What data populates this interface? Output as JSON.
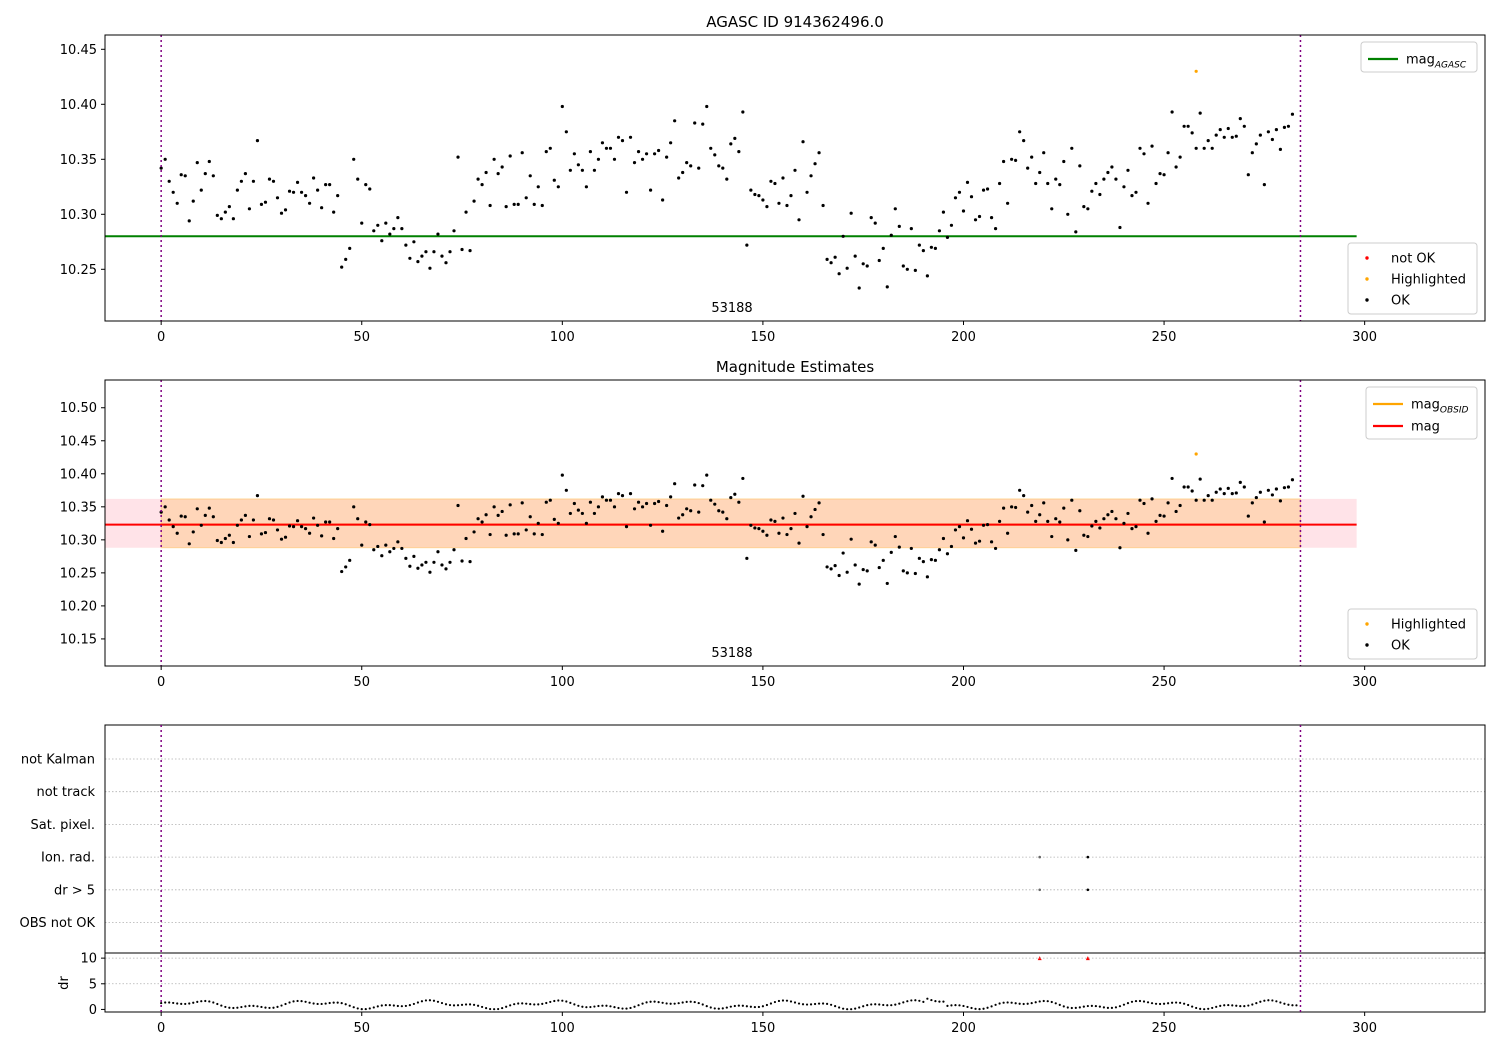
{
  "chart_data": [
    {
      "type": "scatter",
      "title": "AGASC ID 914362496.0",
      "annotation": "53188",
      "xlim": [
        -14,
        330
      ],
      "ylim": [
        10.203,
        10.463
      ],
      "xticks": [
        0,
        50,
        100,
        150,
        200,
        250,
        300
      ],
      "yticks": [
        10.25,
        10.3,
        10.35,
        10.4,
        10.45
      ],
      "vlines": [
        0,
        284
      ],
      "mag_agasc": 10.28,
      "mag_agasc_xrange": [
        -14,
        298
      ],
      "series": [
        {
          "name": "not OK",
          "color": "#ff0000",
          "points": []
        },
        {
          "name": "Highlighted",
          "color": "#ffa500",
          "points": [
            [
              258,
              10.43
            ]
          ]
        },
        {
          "name": "OK",
          "color": "#000000",
          "points": "ok_points"
        }
      ],
      "legend_lines": [
        {
          "name": "mag",
          "sub": "AGASC",
          "color": "#008000"
        }
      ],
      "legend_markers": [
        "not OK",
        "Highlighted",
        "OK"
      ],
      "grid": false
    },
    {
      "type": "scatter",
      "title": "Magnitude Estimates",
      "annotation": "53188",
      "xlim": [
        -14,
        330
      ],
      "ylim": [
        10.109,
        10.542
      ],
      "xticks": [
        0,
        50,
        100,
        150,
        200,
        250,
        300
      ],
      "yticks": [
        10.15,
        10.2,
        10.25,
        10.3,
        10.35,
        10.4,
        10.45,
        10.5
      ],
      "vlines": [
        0,
        284
      ],
      "mag": 10.323,
      "mag_band": [
        10.288,
        10.362
      ],
      "mag_obsid_band": [
        10.288,
        10.362
      ],
      "band_xrange": [
        -14,
        298
      ],
      "series": [
        {
          "name": "Highlighted",
          "color": "#ffa500",
          "points": [
            [
              258,
              10.43
            ]
          ]
        },
        {
          "name": "OK",
          "color": "#000000",
          "points": "ok_points"
        }
      ],
      "legend_lines": [
        {
          "name": "mag",
          "sub": "OBSID",
          "color": "#ffa500"
        },
        {
          "name": "mag",
          "sub": "",
          "color": "#ff0000"
        }
      ],
      "legend_markers": [
        "Highlighted",
        "OK"
      ],
      "grid": false
    },
    {
      "type": "scatter",
      "title": "",
      "xlim": [
        -14,
        330
      ],
      "xticks": [
        0,
        50,
        100,
        150,
        200,
        250,
        300
      ],
      "vlines": [
        0,
        284
      ],
      "flag_rows": [
        "not Kalman",
        "not track",
        "Sat. pixel.",
        "Ion. rad.",
        "dr > 5",
        "OBS not OK"
      ],
      "flag_points": [
        {
          "row": "Ion. rad.",
          "x": 219
        },
        {
          "row": "Ion. rad.",
          "x": 231
        },
        {
          "row": "dr > 5",
          "x": 219
        },
        {
          "row": "dr > 5",
          "x": 231
        }
      ],
      "dr_panel": {
        "ylabel": "dr",
        "ylim": [
          -0.5,
          11
        ],
        "yticks": [
          0,
          5,
          10
        ],
        "clipped_points": [
          219,
          231
        ],
        "clip_value": 10
      },
      "grid": true
    }
  ],
  "ok_points": [
    [
      0,
      10.342
    ],
    [
      1,
      10.35
    ],
    [
      2,
      10.33
    ],
    [
      3,
      10.32
    ],
    [
      4,
      10.31
    ],
    [
      5,
      10.336
    ],
    [
      6,
      10.335
    ],
    [
      7,
      10.294
    ],
    [
      8,
      10.312
    ],
    [
      9,
      10.347
    ],
    [
      10,
      10.322
    ],
    [
      11,
      10.337
    ],
    [
      12,
      10.348
    ],
    [
      13,
      10.335
    ],
    [
      14,
      10.299
    ],
    [
      15,
      10.296
    ],
    [
      16,
      10.302
    ],
    [
      17,
      10.307
    ],
    [
      18,
      10.296
    ],
    [
      19,
      10.322
    ],
    [
      20,
      10.33
    ],
    [
      21,
      10.337
    ],
    [
      22,
      10.305
    ],
    [
      23,
      10.33
    ],
    [
      24,
      10.367
    ],
    [
      25,
      10.309
    ],
    [
      26,
      10.311
    ],
    [
      27,
      10.332
    ],
    [
      28,
      10.33
    ],
    [
      29,
      10.315
    ],
    [
      30,
      10.301
    ],
    [
      31,
      10.304
    ],
    [
      32,
      10.321
    ],
    [
      33,
      10.32
    ],
    [
      34,
      10.329
    ],
    [
      35,
      10.32
    ],
    [
      36,
      10.317
    ],
    [
      37,
      10.31
    ],
    [
      38,
      10.333
    ],
    [
      39,
      10.322
    ],
    [
      40,
      10.306
    ],
    [
      41,
      10.327
    ],
    [
      42,
      10.327
    ],
    [
      43,
      10.302
    ],
    [
      44,
      10.317
    ],
    [
      45,
      10.252
    ],
    [
      46,
      10.259
    ],
    [
      47,
      10.269
    ],
    [
      48,
      10.35
    ],
    [
      49,
      10.332
    ],
    [
      50,
      10.292
    ],
    [
      51,
      10.327
    ],
    [
      52,
      10.323
    ],
    [
      53,
      10.285
    ],
    [
      54,
      10.29
    ],
    [
      55,
      10.276
    ],
    [
      56,
      10.292
    ],
    [
      57,
      10.282
    ],
    [
      58,
      10.287
    ],
    [
      59,
      10.297
    ],
    [
      60,
      10.287
    ],
    [
      61,
      10.272
    ],
    [
      62,
      10.26
    ],
    [
      63,
      10.275
    ],
    [
      64,
      10.257
    ],
    [
      65,
      10.262
    ],
    [
      66,
      10.266
    ],
    [
      67,
      10.251
    ],
    [
      68,
      10.266
    ],
    [
      69,
      10.282
    ],
    [
      70,
      10.262
    ],
    [
      71,
      10.256
    ],
    [
      72,
      10.266
    ],
    [
      73,
      10.285
    ],
    [
      74,
      10.352
    ],
    [
      75,
      10.268
    ],
    [
      76,
      10.302
    ],
    [
      77,
      10.267
    ],
    [
      78,
      10.312
    ],
    [
      79,
      10.332
    ],
    [
      80,
      10.327
    ],
    [
      81,
      10.338
    ],
    [
      82,
      10.308
    ],
    [
      83,
      10.35
    ],
    [
      84,
      10.337
    ],
    [
      85,
      10.343
    ],
    [
      86,
      10.307
    ],
    [
      87,
      10.353
    ],
    [
      88,
      10.309
    ],
    [
      89,
      10.309
    ],
    [
      90,
      10.356
    ],
    [
      91,
      10.315
    ],
    [
      92,
      10.335
    ],
    [
      93,
      10.309
    ],
    [
      94,
      10.325
    ],
    [
      95,
      10.308
    ],
    [
      96,
      10.357
    ],
    [
      97,
      10.36
    ],
    [
      98,
      10.331
    ],
    [
      99,
      10.325
    ],
    [
      100,
      10.398
    ],
    [
      101,
      10.375
    ],
    [
      102,
      10.34
    ],
    [
      103,
      10.355
    ],
    [
      104,
      10.345
    ],
    [
      105,
      10.34
    ],
    [
      106,
      10.325
    ],
    [
      107,
      10.357
    ],
    [
      108,
      10.34
    ],
    [
      109,
      10.35
    ],
    [
      110,
      10.365
    ],
    [
      111,
      10.36
    ],
    [
      112,
      10.36
    ],
    [
      113,
      10.35
    ],
    [
      114,
      10.37
    ],
    [
      115,
      10.367
    ],
    [
      116,
      10.32
    ],
    [
      117,
      10.37
    ],
    [
      118,
      10.347
    ],
    [
      119,
      10.357
    ],
    [
      120,
      10.35
    ],
    [
      121,
      10.355
    ],
    [
      122,
      10.322
    ],
    [
      123,
      10.355
    ],
    [
      124,
      10.358
    ],
    [
      125,
      10.313
    ],
    [
      126,
      10.352
    ],
    [
      127,
      10.365
    ],
    [
      128,
      10.385
    ],
    [
      129,
      10.333
    ],
    [
      130,
      10.338
    ],
    [
      131,
      10.347
    ],
    [
      132,
      10.344
    ],
    [
      133,
      10.383
    ],
    [
      134,
      10.342
    ],
    [
      135,
      10.382
    ],
    [
      136,
      10.398
    ],
    [
      137,
      10.36
    ],
    [
      138,
      10.354
    ],
    [
      139,
      10.344
    ],
    [
      140,
      10.342
    ],
    [
      141,
      10.332
    ],
    [
      142,
      10.364
    ],
    [
      143,
      10.369
    ],
    [
      144,
      10.357
    ],
    [
      145,
      10.393
    ],
    [
      146,
      10.272
    ],
    [
      147,
      10.322
    ],
    [
      148,
      10.318
    ],
    [
      149,
      10.317
    ],
    [
      150,
      10.313
    ],
    [
      151,
      10.307
    ],
    [
      152,
      10.33
    ],
    [
      153,
      10.328
    ],
    [
      154,
      10.31
    ],
    [
      155,
      10.333
    ],
    [
      156,
      10.308
    ],
    [
      157,
      10.317
    ],
    [
      158,
      10.34
    ],
    [
      159,
      10.295
    ],
    [
      160,
      10.366
    ],
    [
      161,
      10.32
    ],
    [
      162,
      10.335
    ],
    [
      163,
      10.346
    ],
    [
      164,
      10.356
    ],
    [
      165,
      10.308
    ],
    [
      166,
      10.259
    ],
    [
      167,
      10.256
    ],
    [
      168,
      10.261
    ],
    [
      169,
      10.246
    ],
    [
      170,
      10.28
    ],
    [
      171,
      10.251
    ],
    [
      172,
      10.301
    ],
    [
      173,
      10.262
    ],
    [
      174,
      10.233
    ],
    [
      175,
      10.255
    ],
    [
      176,
      10.253
    ],
    [
      177,
      10.297
    ],
    [
      178,
      10.292
    ],
    [
      179,
      10.258
    ],
    [
      180,
      10.269
    ],
    [
      181,
      10.234
    ],
    [
      182,
      10.281
    ],
    [
      183,
      10.305
    ],
    [
      184,
      10.289
    ],
    [
      185,
      10.253
    ],
    [
      186,
      10.25
    ],
    [
      187,
      10.287
    ],
    [
      188,
      10.249
    ],
    [
      189,
      10.272
    ],
    [
      190,
      10.267
    ],
    [
      191,
      10.244
    ],
    [
      192,
      10.27
    ],
    [
      193,
      10.269
    ],
    [
      194,
      10.285
    ],
    [
      195,
      10.302
    ],
    [
      196,
      10.279
    ],
    [
      197,
      10.29
    ],
    [
      198,
      10.315
    ],
    [
      199,
      10.32
    ],
    [
      200,
      10.303
    ],
    [
      201,
      10.329
    ],
    [
      202,
      10.316
    ],
    [
      203,
      10.295
    ],
    [
      204,
      10.298
    ],
    [
      205,
      10.322
    ],
    [
      206,
      10.323
    ],
    [
      207,
      10.297
    ],
    [
      208,
      10.287
    ],
    [
      209,
      10.328
    ],
    [
      210,
      10.348
    ],
    [
      211,
      10.31
    ],
    [
      212,
      10.35
    ],
    [
      213,
      10.349
    ],
    [
      214,
      10.375
    ],
    [
      215,
      10.367
    ],
    [
      216,
      10.342
    ],
    [
      217,
      10.352
    ],
    [
      218,
      10.328
    ],
    [
      219,
      10.338
    ],
    [
      220,
      10.356
    ],
    [
      221,
      10.328
    ],
    [
      222,
      10.305
    ],
    [
      223,
      10.332
    ],
    [
      224,
      10.327
    ],
    [
      225,
      10.348
    ],
    [
      226,
      10.3
    ],
    [
      227,
      10.36
    ],
    [
      228,
      10.284
    ],
    [
      229,
      10.344
    ],
    [
      230,
      10.307
    ],
    [
      231,
      10.305
    ],
    [
      232,
      10.321
    ],
    [
      233,
      10.328
    ],
    [
      234,
      10.318
    ],
    [
      235,
      10.332
    ],
    [
      236,
      10.338
    ],
    [
      237,
      10.343
    ],
    [
      238,
      10.332
    ],
    [
      239,
      10.288
    ],
    [
      240,
      10.325
    ],
    [
      241,
      10.34
    ],
    [
      242,
      10.317
    ],
    [
      243,
      10.32
    ],
    [
      244,
      10.36
    ],
    [
      245,
      10.355
    ],
    [
      246,
      10.31
    ],
    [
      247,
      10.362
    ],
    [
      248,
      10.328
    ],
    [
      249,
      10.337
    ],
    [
      250,
      10.336
    ],
    [
      251,
      10.356
    ],
    [
      252,
      10.393
    ],
    [
      253,
      10.343
    ],
    [
      254,
      10.352
    ],
    [
      255,
      10.38
    ],
    [
      256,
      10.38
    ],
    [
      257,
      10.374
    ],
    [
      258,
      10.36
    ],
    [
      259,
      10.392
    ],
    [
      260,
      10.36
    ],
    [
      261,
      10.367
    ],
    [
      262,
      10.36
    ],
    [
      263,
      10.372
    ],
    [
      264,
      10.377
    ],
    [
      265,
      10.37
    ],
    [
      266,
      10.378
    ],
    [
      267,
      10.37
    ],
    [
      268,
      10.371
    ],
    [
      269,
      10.387
    ],
    [
      270,
      10.38
    ],
    [
      271,
      10.336
    ],
    [
      272,
      10.356
    ],
    [
      273,
      10.364
    ],
    [
      274,
      10.372
    ],
    [
      275,
      10.327
    ],
    [
      276,
      10.375
    ],
    [
      277,
      10.368
    ],
    [
      278,
      10.377
    ],
    [
      279,
      10.359
    ],
    [
      280,
      10.379
    ],
    [
      281,
      10.38
    ],
    [
      282,
      10.391
    ]
  ]
}
